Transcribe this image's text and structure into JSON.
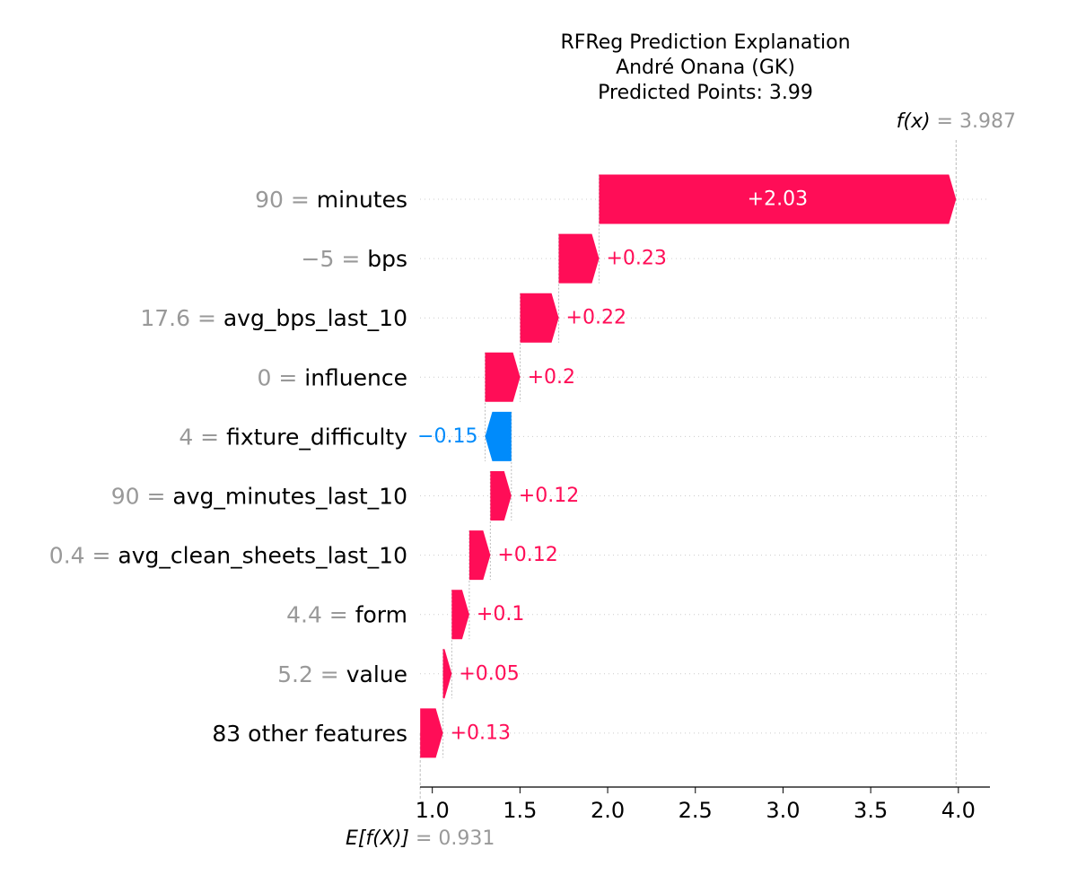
{
  "title_lines": [
    "RFReg Prediction Explanation",
    "André Onana (GK)",
    "Predicted Points: 3.99"
  ],
  "chart_data": {
    "type": "waterfall",
    "base_value": 0.931,
    "final_value": 3.987,
    "base_value_label": "0.931",
    "final_value_label": "3.987",
    "fx_label": "f(x)",
    "ex_label": "E[f(X)]",
    "xlim": [
      0.93,
      4.18
    ],
    "x_ticks": [
      1.0,
      1.5,
      2.0,
      2.5,
      3.0,
      3.5,
      4.0
    ],
    "x_tick_labels": [
      "1.0",
      "1.5",
      "2.0",
      "2.5",
      "3.0",
      "3.5",
      "4.0"
    ],
    "features": [
      {
        "value_text": "90",
        "name": "minutes",
        "contribution": 2.03,
        "label": "+2.03"
      },
      {
        "value_text": "−5",
        "name": "bps",
        "contribution": 0.23,
        "label": "+0.23"
      },
      {
        "value_text": "17.6",
        "name": "avg_bps_last_10",
        "contribution": 0.22,
        "label": "+0.22"
      },
      {
        "value_text": "0",
        "name": "influence",
        "contribution": 0.2,
        "label": "+0.2"
      },
      {
        "value_text": "4",
        "name": "fixture_difficulty",
        "contribution": -0.15,
        "label": "−0.15"
      },
      {
        "value_text": "90",
        "name": "avg_minutes_last_10",
        "contribution": 0.12,
        "label": "+0.12"
      },
      {
        "value_text": "0.4",
        "name": "avg_clean_sheets_last_10",
        "contribution": 0.12,
        "label": "+0.12"
      },
      {
        "value_text": "4.4",
        "name": "form",
        "contribution": 0.1,
        "label": "+0.1"
      },
      {
        "value_text": "5.2",
        "name": "value",
        "contribution": 0.05,
        "label": "+0.05"
      },
      {
        "value_text": "",
        "name": "83 other features",
        "contribution": 0.13,
        "label": "+0.13"
      }
    ]
  },
  "colors": {
    "positive": "#ff0d57",
    "negative": "#008bfb",
    "annotation_grey": "#999999",
    "grid": "#cccccc"
  }
}
